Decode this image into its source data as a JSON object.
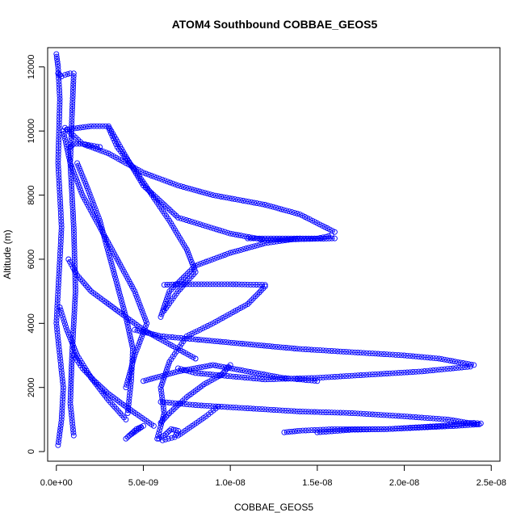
{
  "chart_data": {
    "type": "scatter",
    "title": "ATOM4 Southbound COBBAE_GEOS5",
    "xlabel": "COBBAE_GEOS5",
    "ylabel": "Altitude (m)",
    "xlim": [
      -5e-10,
      2.55e-08
    ],
    "ylim": [
      -300,
      12600
    ],
    "x_ticks": [
      0,
      5e-09,
      1e-08,
      1.5e-08,
      2e-08,
      2.5e-08
    ],
    "x_tick_labels": [
      "0.0e+00",
      "5.0e-09",
      "1.0e-08",
      "1.5e-08",
      "2.0e-08",
      "2.5e-08"
    ],
    "y_ticks": [
      0,
      2000,
      4000,
      6000,
      8000,
      10000,
      12000
    ],
    "y_tick_labels": [
      "0",
      "2000",
      "4000",
      "6000",
      "8000",
      "10000",
      "12000"
    ],
    "marker": "open-circle",
    "line_style": "solid-thin",
    "color": "#0000ff",
    "series": [
      {
        "x": [
          1.6e-08,
          1.4e-08,
          1.2e-08,
          9e-09,
          7e-09,
          5e-09,
          3e-09,
          1.5e-09,
          5e-10
        ],
        "y": [
          6850,
          7400,
          7700,
          8000,
          8300,
          8700,
          9300,
          9600,
          10100
        ]
      },
      {
        "x": [
          1.1e-08,
          1.3e-08,
          1.5e-08,
          1.55e-08,
          1.58e-08
        ],
        "y": [
          6650,
          6650,
          6650,
          6700,
          6750
        ]
      },
      {
        "x": [
          6e-10,
          2e-09,
          3e-09,
          4e-09,
          5e-09,
          7e-09,
          1e-08,
          1.2e-08,
          1.6e-08
        ],
        "y": [
          10050,
          10150,
          10150,
          9200,
          8300,
          7300,
          6800,
          6600,
          6650
        ]
      },
      {
        "x": [
          1.2e-08,
          1e-08,
          7e-09,
          6.2e-09
        ],
        "y": [
          5200,
          5220,
          5220,
          5200
        ]
      },
      {
        "x": [
          6e-09,
          6.5e-09,
          8e-09,
          1e-08,
          1.2e-08,
          1.4e-08
        ],
        "y": [
          4200,
          5000,
          5800,
          6200,
          6500,
          6650
        ]
      },
      {
        "x": [
          1.2e-08,
          1.1e-08,
          9e-09,
          7.5e-09,
          7e-09,
          6.5e-09,
          6e-09,
          6.2e-09,
          5.8e-09
        ],
        "y": [
          5150,
          4600,
          4000,
          3600,
          3200,
          2800,
          2000,
          1200,
          400
        ]
      },
      {
        "x": [
          2.4e-08,
          2.2e-08,
          2e-08,
          1.7e-08,
          1.4e-08,
          1.1e-08,
          8e-09,
          6e-09,
          4.5e-09
        ],
        "y": [
          2700,
          2900,
          3000,
          3100,
          3200,
          3350,
          3500,
          3600,
          3800
        ]
      },
      {
        "x": [
          2.38e-08,
          2.1e-08,
          1.8e-08,
          1.5e-08,
          1.2e-08,
          1e-08,
          8e-09,
          7e-09
        ],
        "y": [
          2650,
          2500,
          2400,
          2300,
          2250,
          2350,
          2450,
          2600
        ]
      },
      {
        "x": [
          1.5e-08,
          1.3e-08,
          1.1e-08,
          9e-09,
          7e-09,
          5e-09
        ],
        "y": [
          2200,
          2300,
          2500,
          2700,
          2500,
          2200
        ]
      },
      {
        "x": [
          2.44e-08,
          2.4e-08,
          2.2e-08,
          1.9e-08,
          1.6e-08,
          1.4e-08,
          1.31e-08
        ],
        "y": [
          880,
          900,
          800,
          700,
          700,
          650,
          600
        ]
      },
      {
        "x": [
          2.42e-08,
          2.25e-08,
          2e-08,
          1.7e-08,
          1.4e-08,
          1.1e-08,
          8e-09,
          6e-09
        ],
        "y": [
          850,
          1000,
          1100,
          1200,
          1250,
          1350,
          1450,
          1550
        ]
      },
      {
        "x": [
          1.5e-08,
          1.7e-08,
          1.9e-08,
          2.1e-08,
          2.3e-08,
          2.43e-08
        ],
        "y": [
          600,
          680,
          700,
          750,
          800,
          850
        ]
      },
      {
        "x": [
          4e-10,
          8e-10,
          1.5e-09,
          2.5e-09,
          3.5e-09,
          4.5e-09,
          5.2e-09,
          4.5e-09,
          4e-09
        ],
        "y": [
          10000,
          9000,
          8000,
          7000,
          6000,
          5000,
          4000,
          3000,
          2000
        ]
      },
      {
        "x": [
          3e-09,
          3.5e-09,
          4.5e-09,
          5.5e-09,
          6.5e-09,
          7.5e-09,
          8e-09,
          7e-09,
          6.2e-09
        ],
        "y": [
          10100,
          9500,
          8800,
          8000,
          7200,
          6300,
          5600,
          5000,
          4400
        ]
      },
      {
        "x": [
          1.2e-09,
          1.8e-09,
          2.5e-09,
          3e-09,
          3.5e-09,
          4e-09,
          4.4e-09,
          4.3e-09,
          4.1e-09
        ],
        "y": [
          9000,
          8200,
          7200,
          6200,
          5200,
          4200,
          3200,
          2200,
          1200
        ]
      },
      {
        "x": [
          4e-09,
          4.3e-09,
          4.6e-09,
          5e-09,
          4.6e-09,
          4.2e-09
        ],
        "y": [
          400,
          550,
          700,
          800,
          650,
          500
        ]
      },
      {
        "x": [
          5.9e-09,
          6.3e-09,
          6.6e-09,
          7e-09,
          6.8e-09,
          6.1e-09
        ],
        "y": [
          400,
          550,
          700,
          650,
          450,
          350
        ]
      },
      {
        "x": [
          7e-10,
          1.2e-09,
          2e-09,
          3e-09,
          4e-09,
          5e-09,
          6e-09,
          7e-09,
          8e-09
        ],
        "y": [
          6000,
          5500,
          5000,
          4600,
          4200,
          3800,
          3500,
          3200,
          2900
        ]
      },
      {
        "x": [
          1e-09,
          1.5e-09,
          2.2e-09,
          3e-09,
          4e-09,
          4.8e-09,
          5.6e-09
        ],
        "y": [
          3000,
          2600,
          2200,
          1800,
          1400,
          1100,
          800
        ]
      },
      {
        "x": [
          2e-10,
          6e-10,
          1.2e-09,
          2e-09,
          3e-09,
          4e-09
        ],
        "y": [
          4500,
          3800,
          3000,
          2300,
          1600,
          1000
        ]
      },
      {
        "x": [
          8e-10,
          1e-09,
          1.5e-09,
          2.5e-09
        ],
        "y": [
          9500,
          9600,
          9600,
          9500
        ]
      },
      {
        "x": [
          1e-10,
          3e-10,
          5e-10,
          8e-10
        ],
        "y": [
          11800,
          11700,
          11750,
          11800
        ]
      },
      {
        "x": [
          0,
          1e-10,
          2e-10,
          1.5e-10,
          1e-10,
          2e-10,
          3e-10,
          2e-10,
          1e-10,
          0,
          2e-10,
          4e-10,
          3e-10,
          1e-10
        ],
        "y": [
          12400,
          12000,
          11000,
          10000,
          9000,
          8000,
          7000,
          6000,
          5000,
          4000,
          3000,
          2000,
          1000,
          200
        ]
      },
      {
        "x": [
          1e-09,
          9e-10,
          8e-10,
          1e-09,
          1.1e-09,
          9e-10,
          8e-10,
          1e-09
        ],
        "y": [
          11800,
          10500,
          9000,
          7000,
          5000,
          3000,
          1500,
          500
        ]
      },
      {
        "x": [
          6e-09,
          6.5e-09,
          7.5e-09,
          8.5e-09,
          9.5e-09,
          1e-08
        ],
        "y": [
          900,
          1200,
          1700,
          2100,
          2400,
          2700
        ]
      },
      {
        "x": [
          7e-09,
          7.8e-09,
          8.6e-09,
          9.3e-09
        ],
        "y": [
          500,
          800,
          1100,
          1400
        ]
      }
    ]
  }
}
